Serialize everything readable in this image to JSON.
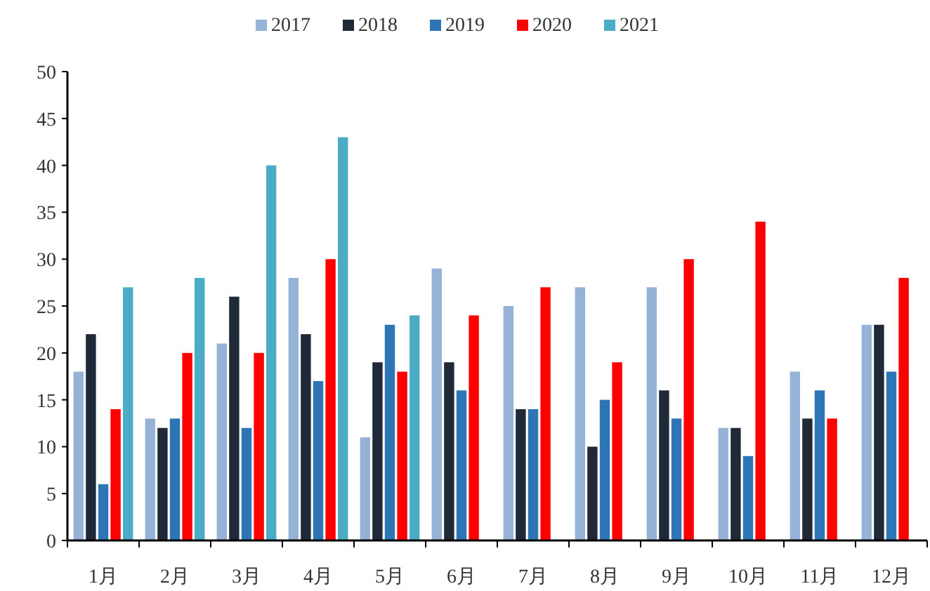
{
  "chart_data": {
    "type": "bar",
    "categories": [
      "1月",
      "2月",
      "3月",
      "4月",
      "5月",
      "6月",
      "7月",
      "8月",
      "9月",
      "10月",
      "11月",
      "12月"
    ],
    "series": [
      {
        "name": "2017",
        "color": "#95b3d7",
        "values": [
          18,
          13,
          21,
          28,
          11,
          29,
          25,
          27,
          27,
          12,
          18,
          23
        ]
      },
      {
        "name": "2018",
        "color": "#1f2937",
        "values": [
          22,
          12,
          26,
          22,
          19,
          19,
          14,
          10,
          16,
          12,
          13,
          23
        ]
      },
      {
        "name": "2019",
        "color": "#2e75b6",
        "values": [
          6,
          13,
          12,
          17,
          23,
          16,
          14,
          15,
          13,
          9,
          16,
          18
        ]
      },
      {
        "name": "2020",
        "color": "#ff0000",
        "values": [
          14,
          20,
          20,
          30,
          18,
          24,
          27,
          19,
          30,
          34,
          13,
          28
        ]
      },
      {
        "name": "2021",
        "color": "#4bacc6",
        "values": [
          27,
          28,
          40,
          43,
          24,
          null,
          null,
          null,
          null,
          null,
          null,
          null
        ]
      }
    ],
    "ylim": [
      0,
      50
    ],
    "yticks": [
      0,
      5,
      10,
      15,
      20,
      25,
      30,
      35,
      40,
      45,
      50
    ],
    "grid": false,
    "legend": "top"
  }
}
